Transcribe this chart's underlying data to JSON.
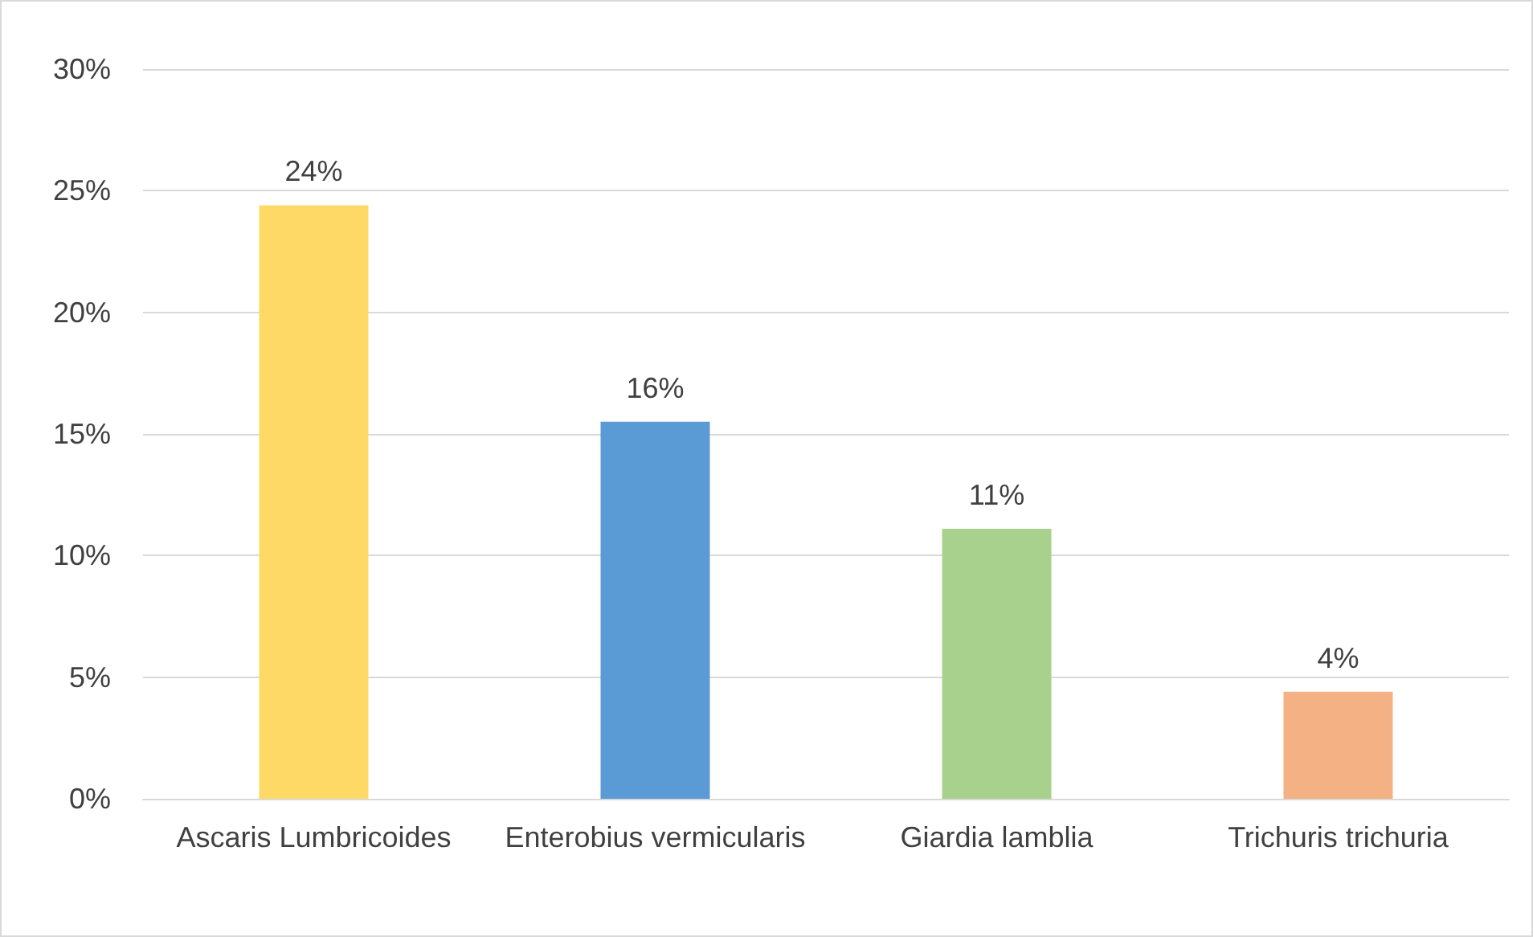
{
  "chart_data": {
    "type": "bar",
    "categories": [
      "Ascaris Lumbricoides",
      "Enterobius vermicularis",
      "Giardia lamblia",
      "Trichuris trichuria"
    ],
    "values": [
      24.4,
      15.5,
      11.1,
      4.4
    ],
    "colors": [
      "#ffd966",
      "#5b9bd5",
      "#a9d18e",
      "#f4b183"
    ],
    "value_labels": [
      "24%",
      "16%",
      "11%",
      "4%"
    ],
    "ylim": [
      0,
      30
    ],
    "yticks": [
      {
        "value": 0,
        "label": "0%"
      },
      {
        "value": 5,
        "label": "5%"
      },
      {
        "value": 10,
        "label": "10%"
      },
      {
        "value": 15,
        "label": "15%"
      },
      {
        "value": 20,
        "label": "20%"
      },
      {
        "value": 25,
        "label": "25%"
      },
      {
        "value": 30,
        "label": "30%"
      }
    ],
    "grid": "y"
  }
}
